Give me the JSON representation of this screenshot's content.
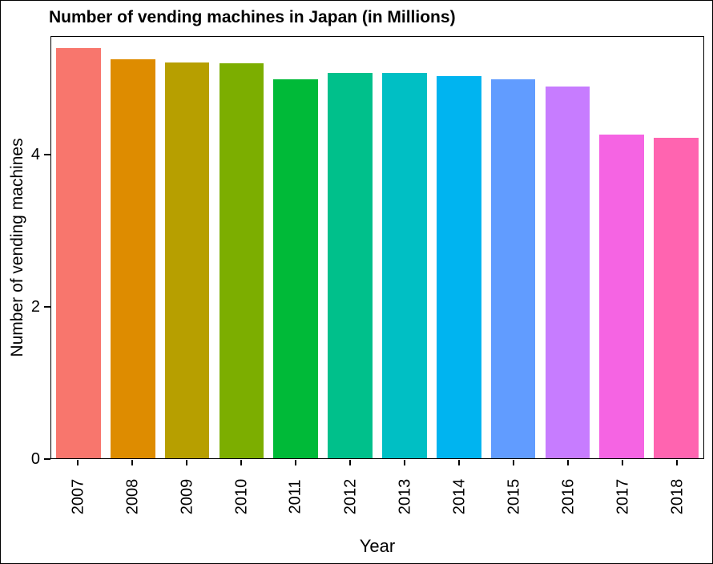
{
  "chart_data": {
    "type": "bar",
    "title": "Number of vending machines in Japan (in Millions)",
    "xlabel": "Year",
    "ylabel": "Number of vending machines",
    "categories": [
      "2007",
      "2008",
      "2009",
      "2010",
      "2011",
      "2012",
      "2013",
      "2014",
      "2015",
      "2016",
      "2017",
      "2018"
    ],
    "values": [
      5.41,
      5.26,
      5.22,
      5.21,
      5.0,
      5.08,
      5.08,
      5.04,
      5.0,
      4.9,
      4.27,
      4.23
    ],
    "bar_colors": [
      "#F8766D",
      "#DE8C00",
      "#B79F00",
      "#7CAE00",
      "#00BA38",
      "#00C08B",
      "#00BFC4",
      "#00B4F0",
      "#619CFF",
      "#C77CFF",
      "#F564E3",
      "#FF64B0"
    ],
    "ylim": [
      0,
      5.56
    ],
    "yticks": [
      0,
      2,
      4
    ],
    "grid": false,
    "legend": "none",
    "panel_border_color": "#000000",
    "background_color": "#ffffff"
  }
}
